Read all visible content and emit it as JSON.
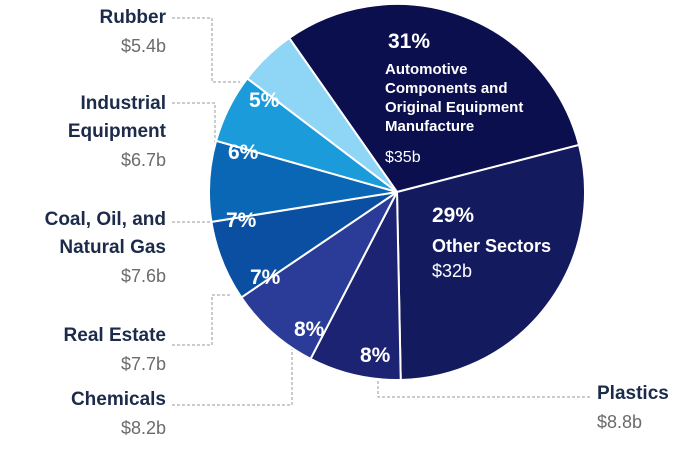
{
  "chart_data": {
    "type": "pie",
    "categories": [
      "Automotive Components and Original Equipment Manufacture",
      "Other Sectors",
      "Plastics",
      "Chemicals",
      "Real Estate",
      "Coal, Oil, and Natural Gas",
      "Industrial Equipment",
      "Rubber"
    ],
    "values": [
      31,
      29,
      8,
      8,
      7,
      7,
      6,
      5
    ],
    "value_labels": [
      "31%",
      "29%",
      "8%",
      "8%",
      "7%",
      "7%",
      "6%",
      "5%"
    ],
    "amount_labels": [
      "$35b",
      "$32b",
      "$8.8b",
      "$8.2b",
      "$7.7b",
      "$7.6b",
      "$6.7b",
      "$5.4b"
    ],
    "colors": [
      "#0b0f4e",
      "#141a5e",
      "#1c2372",
      "#2b3c98",
      "#0a4fa1",
      "#0a67b6",
      "#1b9bd9",
      "#8fd5f6"
    ]
  }
}
